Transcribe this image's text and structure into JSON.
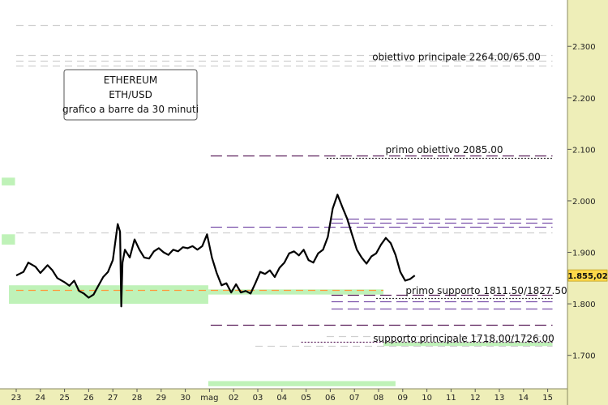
{
  "chart_data": {
    "type": "line",
    "title_lines": [
      "ETHEREUM",
      "ETH/USD",
      "grafico a barre da 30 minuti"
    ],
    "ylim": [
      1635,
      2390
    ],
    "y_ticks": [
      1700,
      1800,
      1900,
      2000,
      2100,
      2200,
      2300
    ],
    "y_tick_labels": [
      "1.700",
      "1.800",
      "1.900",
      "2.000",
      "2.100",
      "2.200",
      "2.300"
    ],
    "x_labels": [
      "23",
      "24",
      "25",
      "26",
      "27",
      "28",
      "29",
      "30",
      "mag",
      "02",
      "03",
      "04",
      "05",
      "06",
      "07",
      "08",
      "09",
      "10",
      "11",
      "12",
      "13",
      "14",
      "15"
    ],
    "last_price": 1855.02,
    "last_price_label": "1.855,02",
    "annotations": [
      {
        "text": "obiettivo principale 2264.00/65.00",
        "price": 2265
      },
      {
        "text": "primo obiettivo 2085.00",
        "price": 2085
      },
      {
        "text": "primo supporto 1811.50/1827.50",
        "price": 1811.5
      },
      {
        "text": "supporto principale 1718.00/1726.00",
        "price": 1718
      }
    ],
    "series": [
      {
        "values": [
          [
            0,
            1855
          ],
          [
            0.3,
            1862
          ],
          [
            0.5,
            1880
          ],
          [
            0.8,
            1872
          ],
          [
            1,
            1860
          ],
          [
            1.3,
            1875
          ],
          [
            1.5,
            1865
          ],
          [
            1.7,
            1850
          ],
          [
            2,
            1842
          ],
          [
            2.2,
            1835
          ],
          [
            2.4,
            1845
          ],
          [
            2.6,
            1825
          ],
          [
            2.8,
            1820
          ],
          [
            3,
            1812
          ],
          [
            3.2,
            1818
          ],
          [
            3.4,
            1835
          ],
          [
            3.6,
            1852
          ],
          [
            3.8,
            1862
          ],
          [
            4,
            1885
          ],
          [
            4.2,
            1955
          ],
          [
            4.3,
            1940
          ],
          [
            4.35,
            1795
          ],
          [
            4.4,
            1880
          ],
          [
            4.5,
            1905
          ],
          [
            4.7,
            1890
          ],
          [
            4.9,
            1925
          ],
          [
            5.1,
            1905
          ],
          [
            5.3,
            1890
          ],
          [
            5.5,
            1888
          ],
          [
            5.7,
            1902
          ],
          [
            5.9,
            1908
          ],
          [
            6.1,
            1900
          ],
          [
            6.3,
            1895
          ],
          [
            6.5,
            1905
          ],
          [
            6.7,
            1902
          ],
          [
            6.9,
            1910
          ],
          [
            7.1,
            1908
          ],
          [
            7.3,
            1912
          ],
          [
            7.5,
            1905
          ],
          [
            7.7,
            1912
          ],
          [
            7.9,
            1935
          ],
          [
            8.1,
            1890
          ],
          [
            8.3,
            1860
          ],
          [
            8.5,
            1836
          ],
          [
            8.7,
            1840
          ],
          [
            8.9,
            1822
          ],
          [
            9.1,
            1838
          ],
          [
            9.3,
            1822
          ],
          [
            9.5,
            1825
          ],
          [
            9.7,
            1820
          ],
          [
            9.9,
            1840
          ],
          [
            10.1,
            1862
          ],
          [
            10.3,
            1858
          ],
          [
            10.5,
            1865
          ],
          [
            10.7,
            1852
          ],
          [
            10.9,
            1870
          ],
          [
            11.1,
            1880
          ],
          [
            11.3,
            1898
          ],
          [
            11.5,
            1902
          ],
          [
            11.7,
            1894
          ],
          [
            11.9,
            1905
          ],
          [
            12.1,
            1885
          ],
          [
            12.3,
            1880
          ],
          [
            12.5,
            1898
          ],
          [
            12.7,
            1905
          ],
          [
            12.9,
            1930
          ],
          [
            13.1,
            1985
          ],
          [
            13.3,
            2012
          ],
          [
            13.5,
            1988
          ],
          [
            13.7,
            1965
          ],
          [
            13.9,
            1935
          ],
          [
            14.1,
            1905
          ],
          [
            14.3,
            1890
          ],
          [
            14.5,
            1878
          ],
          [
            14.7,
            1892
          ],
          [
            14.9,
            1898
          ],
          [
            15.1,
            1915
          ],
          [
            15.3,
            1928
          ],
          [
            15.5,
            1918
          ],
          [
            15.7,
            1895
          ],
          [
            15.9,
            1862
          ],
          [
            16.1,
            1845
          ],
          [
            16.3,
            1848
          ],
          [
            16.5,
            1855
          ]
        ]
      }
    ],
    "horizontal_levels": [
      {
        "price": 2342,
        "color": "#cfcfcf",
        "style": "dash",
        "x0": 0,
        "x1": 22.2
      },
      {
        "price": 2283,
        "color": "#cfcfcf",
        "style": "dash",
        "x0": 0,
        "x1": 22.2
      },
      {
        "price": 2272,
        "color": "#cfcfcf",
        "style": "dash",
        "x0": 0,
        "x1": 22.2
      },
      {
        "price": 2262,
        "color": "#cfcfcf",
        "style": "dash",
        "x0": 0,
        "x1": 22.2
      },
      {
        "price": 2088,
        "color": "#5a1f5a",
        "style": "longdash",
        "x0": 8.05,
        "x1": 22.2
      },
      {
        "price": 2083,
        "color": "#333333",
        "style": "dot",
        "x0": 12.85,
        "x1": 22.2
      },
      {
        "price": 1965,
        "color": "#7b52ab",
        "style": "longdash",
        "x0": 13.05,
        "x1": 22.2
      },
      {
        "price": 1957,
        "color": "#7b52ab",
        "style": "longdash",
        "x0": 13.05,
        "x1": 22.2
      },
      {
        "price": 1950,
        "color": "#7b52ab",
        "style": "longdash",
        "x0": 8.05,
        "x1": 22.2
      },
      {
        "price": 1938,
        "color": "#cfcfcf",
        "style": "dash",
        "x0": 0,
        "x1": 22.2
      },
      {
        "price": 1827.5,
        "color": "#ff9a3c",
        "style": "dash",
        "x0": 0,
        "x1": 15.2
      },
      {
        "price": 1818,
        "color": "#5a1f5a",
        "style": "longdash",
        "x0": 13.05,
        "x1": 22.2
      },
      {
        "price": 1811.5,
        "color": "#333333",
        "style": "dot",
        "x0": 14.9,
        "x1": 22.2
      },
      {
        "price": 1805,
        "color": "#7b52ab",
        "style": "longdash",
        "x0": 13.05,
        "x1": 22.2
      },
      {
        "price": 1791,
        "color": "#7b52ab",
        "style": "longdash",
        "x0": 13.05,
        "x1": 22.2
      },
      {
        "price": 1760,
        "color": "#5a1f5a",
        "style": "longdash",
        "x0": 8.05,
        "x1": 22.2
      },
      {
        "price": 1738,
        "color": "#cfcfcf",
        "style": "dash",
        "x0": 12.85,
        "x1": 22.2
      },
      {
        "price": 1726,
        "color": "#5a1f5a",
        "style": "dot",
        "x0": 11.8,
        "x1": 22.2
      },
      {
        "price": 1718,
        "color": "#cfcfcf",
        "style": "dash",
        "x0": 9.9,
        "x1": 22.2
      }
    ],
    "zones": [
      {
        "x0": -0.6,
        "x1": -0.05,
        "y0": 2045,
        "y1": 2030
      },
      {
        "x0": -0.6,
        "x1": -0.05,
        "y0": 1935,
        "y1": 1915
      },
      {
        "x0": -0.3,
        "x1": 7.95,
        "y0": 1836,
        "y1": 1800
      },
      {
        "x0": 7.95,
        "x1": 15.2,
        "y0": 1828,
        "y1": 1818
      },
      {
        "x0": 15.2,
        "x1": 22.2,
        "y0": 1726,
        "y1": 1718
      },
      {
        "x0": 7.95,
        "x1": 15.7,
        "y0": 1650,
        "y1": 1640
      }
    ]
  }
}
